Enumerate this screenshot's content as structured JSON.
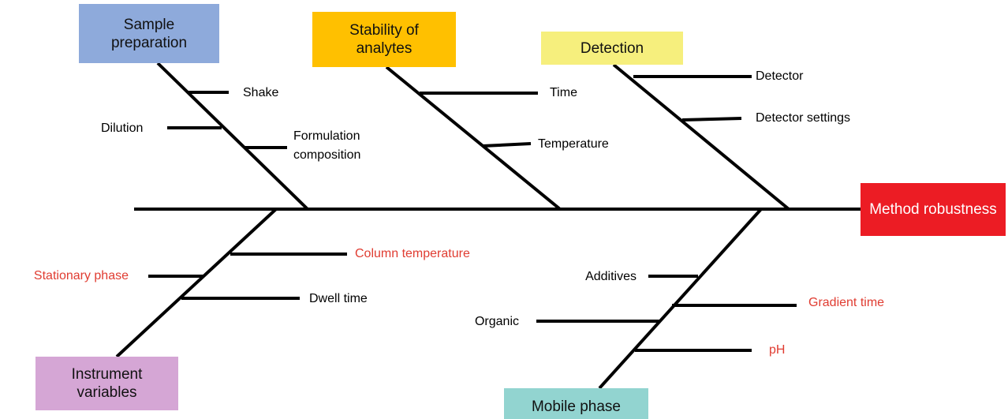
{
  "effect": {
    "label": "Method robustness",
    "color": "#ec1c24",
    "text_color": "#ffffff"
  },
  "categories": [
    {
      "label": "Sample preparation",
      "color": "#8eaadb",
      "causes": [
        {
          "label": "Shake",
          "color": "#000000"
        },
        {
          "label": "Dilution",
          "color": "#000000"
        },
        {
          "label": "Formulation composition",
          "color": "#000000"
        }
      ]
    },
    {
      "label": "Stability of analytes",
      "color": "#ffc000",
      "causes": [
        {
          "label": "Time",
          "color": "#000000"
        },
        {
          "label": "Temperature",
          "color": "#000000"
        }
      ]
    },
    {
      "label": "Detection",
      "color": "#f6ef7d",
      "causes": [
        {
          "label": "Detector",
          "color": "#000000"
        },
        {
          "label": "Detector settings",
          "color": "#000000"
        }
      ]
    },
    {
      "label": "Instrument variables",
      "color": "#d5a6d5",
      "causes": [
        {
          "label": "Column temperature",
          "color": "#e03c31"
        },
        {
          "label": "Stationary phase",
          "color": "#e03c31"
        },
        {
          "label": "Dwell time",
          "color": "#000000"
        }
      ]
    },
    {
      "label": "Mobile phase",
      "color": "#92d4d0",
      "causes": [
        {
          "label": "Additives",
          "color": "#000000"
        },
        {
          "label": "Gradient time",
          "color": "#e03c31"
        },
        {
          "label": "Organic",
          "color": "#000000"
        },
        {
          "label": "pH",
          "color": "#e03c31"
        }
      ]
    }
  ]
}
